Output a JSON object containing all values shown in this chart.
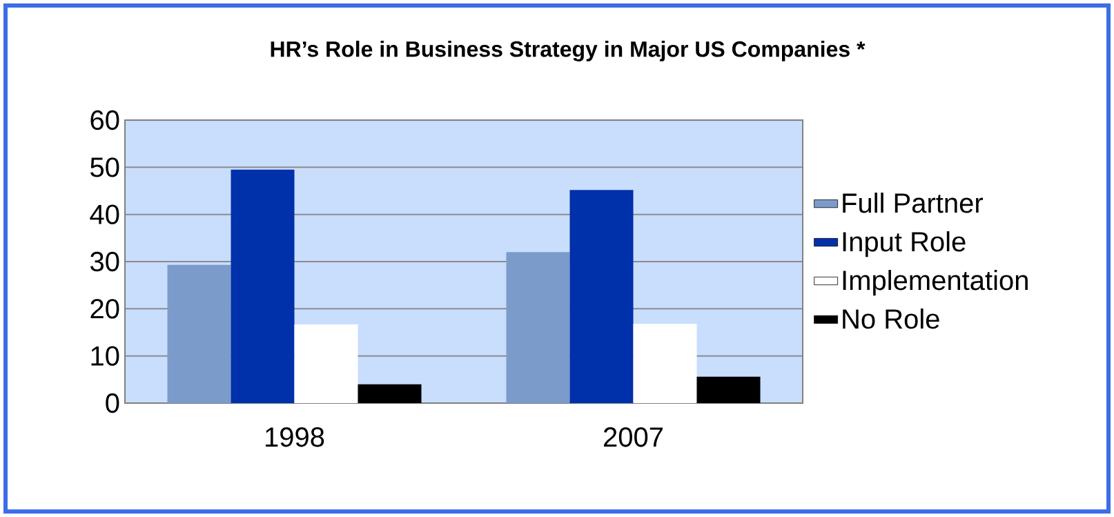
{
  "chart_data": {
    "type": "bar",
    "title": "HR’s Role in Business Strategy in Major US Companies *",
    "categories": [
      "1998",
      "2007"
    ],
    "series": [
      {
        "name": "Full Partner",
        "color": "#7b9bcb",
        "values": [
          29.3,
          32.0
        ]
      },
      {
        "name": "Input Role",
        "color": "#0030aa",
        "values": [
          49.5,
          45.2
        ]
      },
      {
        "name": "Implementation",
        "color": "#ffffff",
        "values": [
          16.7,
          16.8
        ]
      },
      {
        "name": "No Role",
        "color": "#000000",
        "values": [
          4.0,
          5.6
        ]
      }
    ],
    "ylim": [
      0,
      60
    ],
    "yticks": [
      0,
      10,
      20,
      30,
      40,
      50,
      60
    ],
    "grid": "y",
    "legend": "right"
  }
}
